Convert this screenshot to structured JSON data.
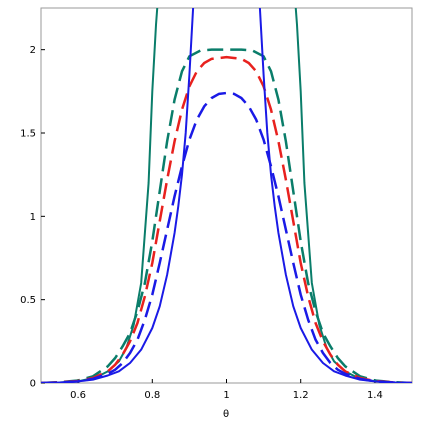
{
  "chart_data": {
    "type": "line",
    "title": "",
    "xlabel": "θ",
    "ylabel": "",
    "xlim": [
      0.5,
      1.5
    ],
    "ylim": [
      0,
      2.25
    ],
    "grid": false,
    "legend": "none",
    "x_ticks": [
      {
        "value": 0.6,
        "label": "0.6"
      },
      {
        "value": 0.8,
        "label": "0.8"
      },
      {
        "value": 1.0,
        "label": "1"
      },
      {
        "value": 1.2,
        "label": "1.2"
      },
      {
        "value": 1.4,
        "label": "1.4"
      }
    ],
    "y_ticks": [
      {
        "value": 0,
        "label": "0"
      },
      {
        "value": 0.5,
        "label": "0.5"
      },
      {
        "value": 1.0,
        "label": "1"
      },
      {
        "value": 1.5,
        "label": "1.5"
      },
      {
        "value": 2.0,
        "label": "2"
      }
    ],
    "series": [
      {
        "color": "#0a7d6a",
        "style": "solid",
        "width": 2,
        "x": [
          0.5,
          0.55,
          0.6,
          0.65,
          0.68,
          0.71,
          0.73,
          0.75,
          0.77,
          0.79,
          0.8,
          0.81,
          0.815
        ],
        "y": [
          0.0,
          0.003,
          0.01,
          0.035,
          0.07,
          0.13,
          0.21,
          0.35,
          0.6,
          1.2,
          1.75,
          2.15,
          2.3
        ]
      },
      {
        "color": "#0a7d6a",
        "style": "solid",
        "width": 2,
        "x": [
          1.185,
          1.19,
          1.2,
          1.21,
          1.23,
          1.25,
          1.27,
          1.29,
          1.32,
          1.35,
          1.4,
          1.45,
          1.5
        ],
        "y": [
          2.3,
          2.15,
          1.75,
          1.2,
          0.6,
          0.35,
          0.21,
          0.13,
          0.07,
          0.035,
          0.01,
          0.003,
          0.0
        ]
      },
      {
        "color": "#0a7d6a",
        "style": "dashed",
        "width": 2.5,
        "x": [
          0.5,
          0.55,
          0.6,
          0.64,
          0.68,
          0.7,
          0.72,
          0.74,
          0.76,
          0.78,
          0.8,
          0.82,
          0.84,
          0.86,
          0.88,
          0.9,
          0.93,
          0.96,
          1.0,
          1.04,
          1.07,
          1.1,
          1.12,
          1.14,
          1.16,
          1.18,
          1.2,
          1.22,
          1.24,
          1.26,
          1.28,
          1.3,
          1.32,
          1.36,
          1.4,
          1.45,
          1.5
        ],
        "y": [
          0.0,
          0.005,
          0.015,
          0.04,
          0.1,
          0.15,
          0.22,
          0.3,
          0.43,
          0.6,
          0.85,
          1.15,
          1.45,
          1.7,
          1.87,
          1.96,
          1.995,
          2.0,
          2.0,
          2.0,
          1.995,
          1.96,
          1.87,
          1.7,
          1.45,
          1.15,
          0.85,
          0.6,
          0.43,
          0.3,
          0.22,
          0.15,
          0.1,
          0.04,
          0.015,
          0.005,
          0.0
        ]
      },
      {
        "color": "#e8211e",
        "style": "dashed",
        "width": 2.5,
        "x": [
          0.5,
          0.55,
          0.6,
          0.64,
          0.68,
          0.7,
          0.72,
          0.74,
          0.76,
          0.78,
          0.8,
          0.82,
          0.84,
          0.86,
          0.88,
          0.9,
          0.92,
          0.94,
          0.96,
          0.98,
          1.0,
          1.02,
          1.04,
          1.06,
          1.08,
          1.1,
          1.12,
          1.14,
          1.16,
          1.18,
          1.2,
          1.22,
          1.24,
          1.26,
          1.28,
          1.3,
          1.32,
          1.36,
          1.4,
          1.45,
          1.5
        ],
        "y": [
          0.0,
          0.004,
          0.012,
          0.03,
          0.07,
          0.11,
          0.17,
          0.25,
          0.36,
          0.52,
          0.72,
          0.97,
          1.22,
          1.45,
          1.64,
          1.78,
          1.87,
          1.92,
          1.945,
          1.95,
          1.955,
          1.95,
          1.945,
          1.92,
          1.87,
          1.78,
          1.64,
          1.45,
          1.22,
          0.97,
          0.72,
          0.52,
          0.36,
          0.25,
          0.17,
          0.11,
          0.07,
          0.03,
          0.012,
          0.004,
          0.0
        ]
      },
      {
        "color": "#1a1ae6",
        "style": "dashed",
        "width": 2.5,
        "x": [
          0.5,
          0.55,
          0.6,
          0.64,
          0.68,
          0.7,
          0.72,
          0.74,
          0.76,
          0.78,
          0.8,
          0.82,
          0.84,
          0.86,
          0.88,
          0.9,
          0.92,
          0.94,
          0.96,
          0.98,
          1.0,
          1.02,
          1.04,
          1.06,
          1.08,
          1.1,
          1.12,
          1.14,
          1.16,
          1.18,
          1.2,
          1.22,
          1.24,
          1.26,
          1.28,
          1.3,
          1.32,
          1.36,
          1.4,
          1.45,
          1.5
        ],
        "y": [
          0.0,
          0.003,
          0.01,
          0.025,
          0.055,
          0.08,
          0.12,
          0.18,
          0.26,
          0.38,
          0.53,
          0.72,
          0.92,
          1.12,
          1.3,
          1.46,
          1.58,
          1.66,
          1.71,
          1.735,
          1.74,
          1.735,
          1.71,
          1.66,
          1.58,
          1.46,
          1.3,
          1.12,
          0.92,
          0.72,
          0.53,
          0.38,
          0.26,
          0.18,
          0.12,
          0.08,
          0.055,
          0.025,
          0.01,
          0.003,
          0.0
        ]
      },
      {
        "color": "#1a1ae6",
        "style": "solid",
        "width": 2,
        "x": [
          0.5,
          0.55,
          0.6,
          0.64,
          0.68,
          0.71,
          0.74,
          0.77,
          0.8,
          0.82,
          0.84,
          0.86,
          0.87,
          0.88,
          0.89,
          0.9,
          0.905,
          0.91,
          0.915
        ],
        "y": [
          0.0,
          0.003,
          0.01,
          0.02,
          0.045,
          0.07,
          0.12,
          0.2,
          0.33,
          0.46,
          0.65,
          0.9,
          1.06,
          1.25,
          1.5,
          1.85,
          2.05,
          2.25,
          2.35
        ]
      },
      {
        "color": "#1a1ae6",
        "style": "solid",
        "width": 2,
        "x": [
          1.085,
          1.09,
          1.095,
          1.1,
          1.11,
          1.12,
          1.13,
          1.14,
          1.16,
          1.18,
          1.2,
          1.23,
          1.26,
          1.29,
          1.32,
          1.36,
          1.4,
          1.45,
          1.5
        ],
        "y": [
          2.35,
          2.25,
          2.05,
          1.85,
          1.5,
          1.25,
          1.06,
          0.9,
          0.65,
          0.46,
          0.33,
          0.2,
          0.12,
          0.07,
          0.045,
          0.02,
          0.01,
          0.003,
          0.0
        ]
      }
    ]
  }
}
